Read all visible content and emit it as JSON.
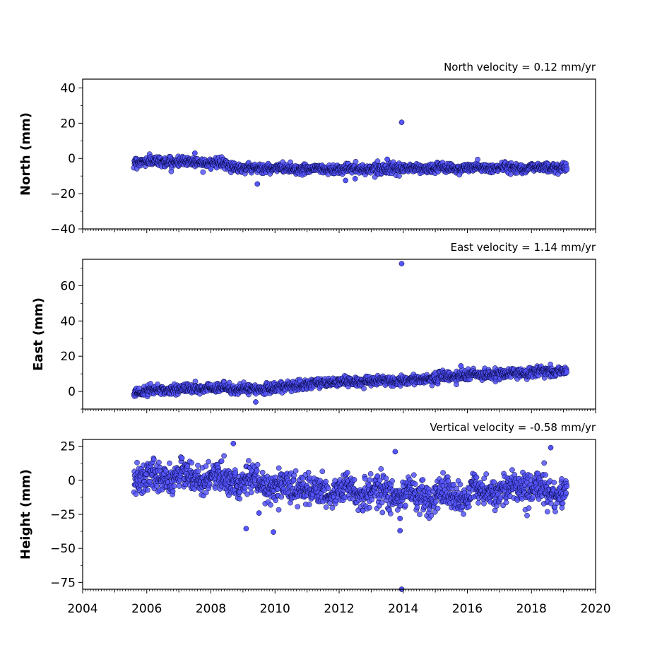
{
  "chart_data": [
    {
      "type": "scatter",
      "title": "North velocity = 0.12 mm/yr",
      "xlabel": "",
      "ylabel": "North (mm)",
      "xlim": [
        2004,
        2020
      ],
      "ylim": [
        -40,
        45
      ],
      "x_ticks": [
        2004,
        2006,
        2008,
        2010,
        2012,
        2014,
        2016,
        2018,
        2020
      ],
      "x_tick_labels_shown": false,
      "y_ticks": [
        -40,
        -20,
        0,
        20,
        40
      ],
      "y_tick_labels": [
        "−40",
        "−20",
        "0",
        "20",
        "40"
      ],
      "time_span": [
        2005.6,
        2019.1
      ],
      "trend": [
        [
          2005.6,
          -1.5
        ],
        [
          2008.0,
          -2.0
        ],
        [
          2009.0,
          -5.5
        ],
        [
          2012.0,
          -6.0
        ],
        [
          2019.1,
          -5.0
        ]
      ],
      "scatter_sd": 1.3,
      "outliers": [
        [
          2013.95,
          20.5
        ],
        [
          2009.45,
          -14.5
        ],
        [
          2012.2,
          -12.5
        ],
        [
          2012.5,
          -11.5
        ],
        [
          2013.5,
          -0.5
        ],
        [
          2007.5,
          3.0
        ],
        [
          2008.0,
          -6.0
        ]
      ],
      "marker_color": "#5555ff",
      "marker_edge": "#000033",
      "grid": false
    },
    {
      "type": "scatter",
      "title": "East velocity = 1.14 mm/yr",
      "xlabel": "",
      "ylabel": "East (mm)",
      "xlim": [
        2004,
        2020
      ],
      "ylim": [
        -10,
        75
      ],
      "x_ticks": [
        2004,
        2006,
        2008,
        2010,
        2012,
        2014,
        2016,
        2018,
        2020
      ],
      "x_tick_labels_shown": false,
      "y_ticks": [
        0,
        20,
        40,
        60
      ],
      "y_tick_labels": [
        "0",
        "20",
        "40",
        "60"
      ],
      "time_span": [
        2005.6,
        2019.1
      ],
      "trend": [
        [
          2005.6,
          0.0
        ],
        [
          2008.0,
          2.0
        ],
        [
          2009.5,
          1.0
        ],
        [
          2011.5,
          5.0
        ],
        [
          2014.0,
          6.0
        ],
        [
          2016.0,
          9.0
        ],
        [
          2019.1,
          12.0
        ]
      ],
      "scatter_sd": 1.4,
      "outliers": [
        [
          2013.95,
          72.5
        ],
        [
          2009.4,
          -6.0
        ],
        [
          2015.8,
          14.5
        ]
      ],
      "marker_color": "#5555ff",
      "marker_edge": "#000033",
      "grid": false
    },
    {
      "type": "scatter",
      "title": "Vertical velocity = -0.58 mm/yr",
      "xlabel": "",
      "ylabel": "Height (mm)",
      "xlim": [
        2004,
        2020
      ],
      "ylim": [
        -80,
        30
      ],
      "x_ticks": [
        2004,
        2006,
        2008,
        2010,
        2012,
        2014,
        2016,
        2018,
        2020
      ],
      "x_tick_labels_shown": true,
      "x_tick_labels": [
        "2004",
        "2006",
        "2008",
        "2010",
        "2012",
        "2014",
        "2016",
        "2018",
        "2020"
      ],
      "y_ticks": [
        -75,
        -50,
        -25,
        0,
        25
      ],
      "y_tick_labels": [
        "−75",
        "−50",
        "−25",
        "0",
        "25"
      ],
      "time_span": [
        2005.6,
        2019.1
      ],
      "trend": [
        [
          2005.6,
          2.0
        ],
        [
          2007.0,
          3.0
        ],
        [
          2008.5,
          0.0
        ],
        [
          2010.5,
          -6.0
        ],
        [
          2012.5,
          -8.0
        ],
        [
          2014.0,
          -11.0
        ],
        [
          2016.0,
          -11.0
        ],
        [
          2017.5,
          -5.0
        ],
        [
          2019.1,
          -8.0
        ]
      ],
      "scatter_sd": 5.5,
      "outliers": [
        [
          2013.95,
          -80.0
        ],
        [
          2009.95,
          -38.0
        ],
        [
          2009.1,
          -35.5
        ],
        [
          2013.9,
          -37.0
        ],
        [
          2008.7,
          27.0
        ],
        [
          2013.75,
          21.0
        ],
        [
          2018.6,
          24.0
        ],
        [
          2009.5,
          -24.0
        ],
        [
          2013.9,
          -28.0
        ]
      ],
      "marker_color": "#5555ff",
      "marker_edge": "#000033",
      "grid": false
    }
  ]
}
